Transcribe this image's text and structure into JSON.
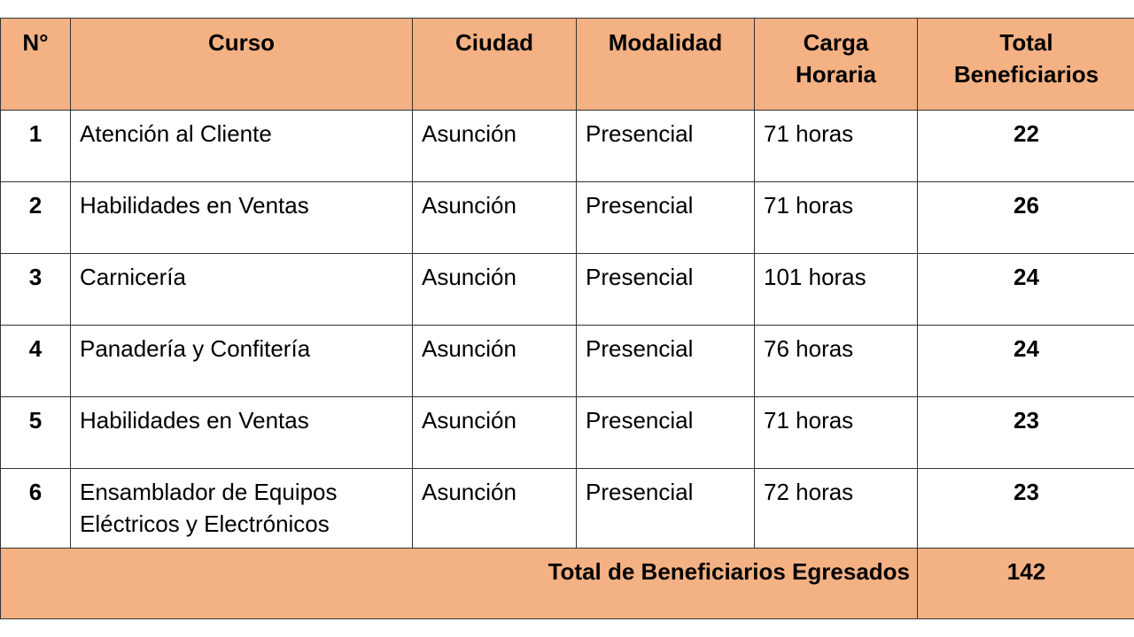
{
  "header": {
    "num": "N°",
    "curso": "Curso",
    "ciudad": "Ciudad",
    "modalidad": "Modalidad",
    "carga_line1": "Carga",
    "carga_line2": "Horaria",
    "total_line1": "Total",
    "total_line2": "Beneficiarios"
  },
  "rows": [
    {
      "num": "1",
      "curso": "Atención al Cliente",
      "curso_line2": "",
      "ciudad": "Asunción",
      "modalidad": "Presencial",
      "carga": "71 horas",
      "total": "22"
    },
    {
      "num": "2",
      "curso": "Habilidades en Ventas",
      "curso_line2": "",
      "ciudad": "Asunción",
      "modalidad": "Presencial",
      "carga": "71 horas",
      "total": "26"
    },
    {
      "num": "3",
      "curso": "Carnicería",
      "curso_line2": "",
      "ciudad": "Asunción",
      "modalidad": "Presencial",
      "carga": "101 horas",
      "total": "24"
    },
    {
      "num": "4",
      "curso": "Panadería y Confitería",
      "curso_line2": "",
      "ciudad": "Asunción",
      "modalidad": "Presencial",
      "carga": "76 horas",
      "total": "24"
    },
    {
      "num": "5",
      "curso": "Habilidades en Ventas",
      "curso_line2": "",
      "ciudad": "Asunción",
      "modalidad": "Presencial",
      "carga": "71 horas",
      "total": "23"
    },
    {
      "num": "6",
      "curso": "Ensamblador de Equipos",
      "curso_line2": "Eléctricos y Electrónicos",
      "ciudad": "Asunción",
      "modalidad": "Presencial",
      "carga": "72 horas",
      "total": "23"
    }
  ],
  "footer": {
    "label": "Total de Beneficiarios Egresados",
    "value": "142"
  },
  "colors": {
    "header_bg": "#f4b183",
    "border": "#333333"
  }
}
